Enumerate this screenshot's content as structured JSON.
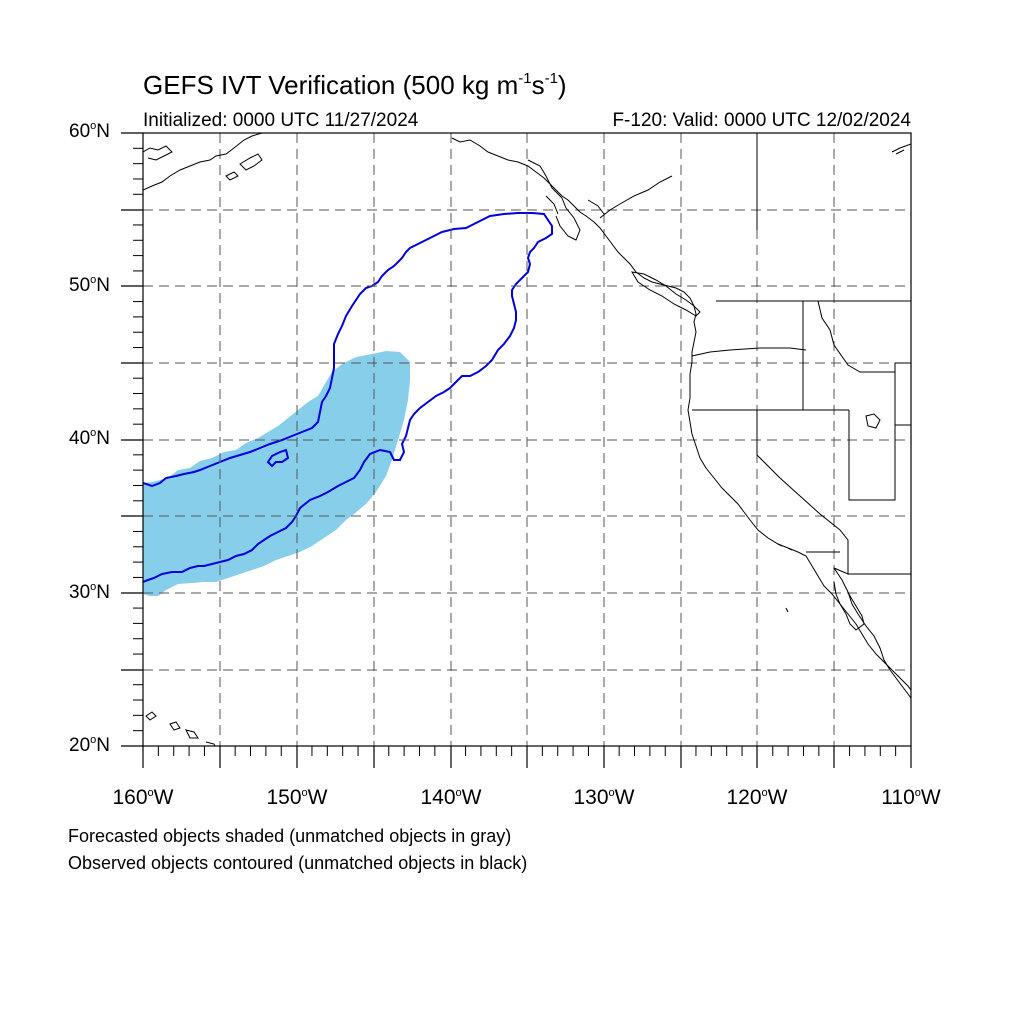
{
  "title": {
    "main": "GEFS IVT Verification (500 kg m",
    "exp1": "-1",
    "mid": "s",
    "exp2": "-1",
    "end": ")"
  },
  "initialized": "Initialized: 0000 UTC 11/27/2024",
  "valid": "F-120: Valid: 0000 UTC 12/02/2024",
  "lat_labels": [
    {
      "value": "60",
      "deg": "o",
      "hemi": "N"
    },
    {
      "value": "50",
      "deg": "o",
      "hemi": "N"
    },
    {
      "value": "40",
      "deg": "o",
      "hemi": "N"
    },
    {
      "value": "30",
      "deg": "o",
      "hemi": "N"
    },
    {
      "value": "20",
      "deg": "o",
      "hemi": "N"
    }
  ],
  "lon_labels": [
    {
      "value": "160",
      "deg": "o",
      "hemi": "W"
    },
    {
      "value": "150",
      "deg": "o",
      "hemi": "W"
    },
    {
      "value": "140",
      "deg": "o",
      "hemi": "W"
    },
    {
      "value": "130",
      "deg": "o",
      "hemi": "W"
    },
    {
      "value": "120",
      "deg": "o",
      "hemi": "W"
    },
    {
      "value": "110",
      "deg": "o",
      "hemi": "W"
    }
  ],
  "notes": {
    "forecast": "Forecasted objects shaded (unmatched objects in gray)",
    "observed": "Observed objects contoured (unmatched objects in black)"
  },
  "colors": {
    "forecast_fill": "#87ceeb",
    "observed_contour": "#0000dd",
    "grid": "#555555",
    "coast": "#000000"
  },
  "map": {
    "lon_range": [
      -160,
      -110
    ],
    "lat_range": [
      20,
      60
    ],
    "grid_interval_deg": 5
  }
}
